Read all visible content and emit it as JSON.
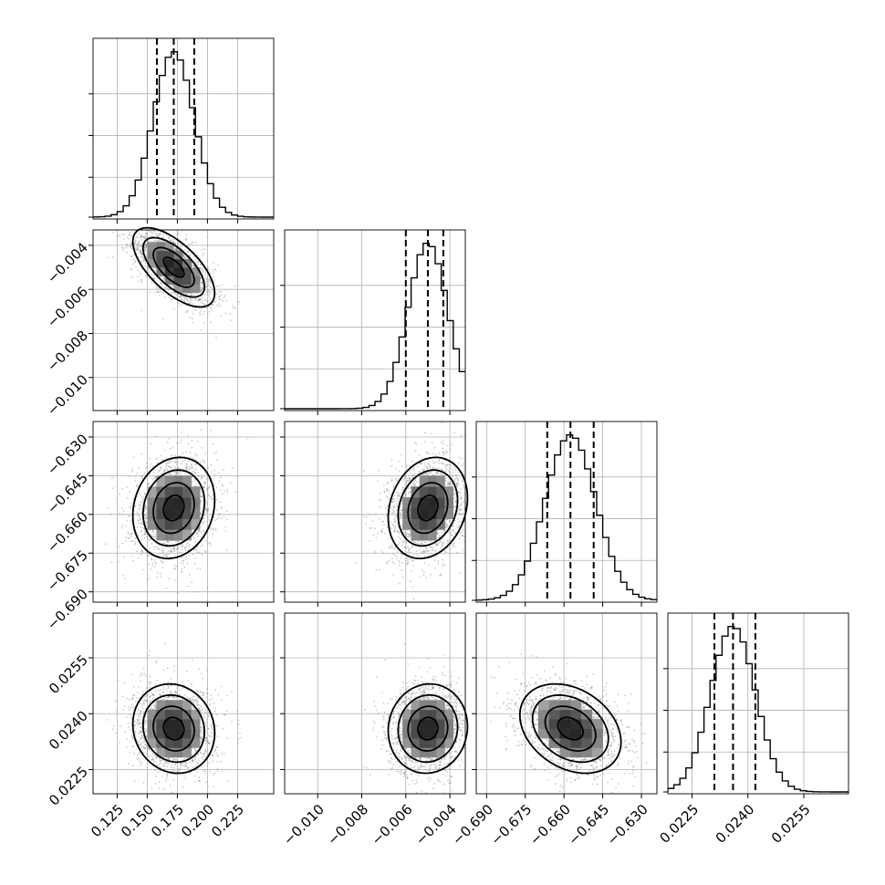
{
  "chart_data": {
    "type": "corner",
    "title": "",
    "n_params": 4,
    "grid": true,
    "params": [
      {
        "axis_range": [
          0.105,
          0.255
        ],
        "ticks": [
          0.125,
          0.15,
          0.175,
          0.2,
          0.225
        ],
        "tick_labels": [
          "0.125",
          "0.150",
          "0.175",
          "0.200",
          "0.225"
        ],
        "mean": 0.172,
        "sd": 0.017,
        "quantiles": [
          0.158,
          0.172,
          0.189
        ]
      },
      {
        "axis_range": [
          -0.0115,
          -0.0033
        ],
        "ticks": [
          -0.01,
          -0.008,
          -0.006,
          -0.004
        ],
        "tick_labels": [
          "−0.010",
          "−0.008",
          "−0.006",
          "−0.004"
        ],
        "mean": -0.005,
        "sd": 0.0009,
        "quantiles": [
          -0.006,
          -0.005,
          -0.0043
        ]
      },
      {
        "axis_range": [
          -0.694,
          -0.624
        ],
        "ticks": [
          -0.69,
          -0.675,
          -0.66,
          -0.645,
          -0.63
        ],
        "tick_labels": [
          "−0.690",
          "−0.675",
          "−0.660",
          "−0.645",
          "−0.630"
        ],
        "mean": -0.6575,
        "sd": 0.0098,
        "quantiles": [
          -0.6665,
          -0.6575,
          -0.6485
        ]
      },
      {
        "axis_range": [
          0.02185,
          0.0267
        ],
        "ticks": [
          0.0225,
          0.024,
          0.0255
        ],
        "tick_labels": [
          "0.0225",
          "0.0240",
          "0.0255"
        ],
        "mean": 0.0236,
        "sd": 0.0006,
        "quantiles": [
          0.0231,
          0.0236,
          0.0242
        ]
      }
    ],
    "correlations": {
      "1-0": -0.65,
      "2-0": 0.15,
      "2-1": 0.2,
      "3-0": -0.1,
      "3-1": 0.05,
      "3-2": -0.3
    }
  }
}
